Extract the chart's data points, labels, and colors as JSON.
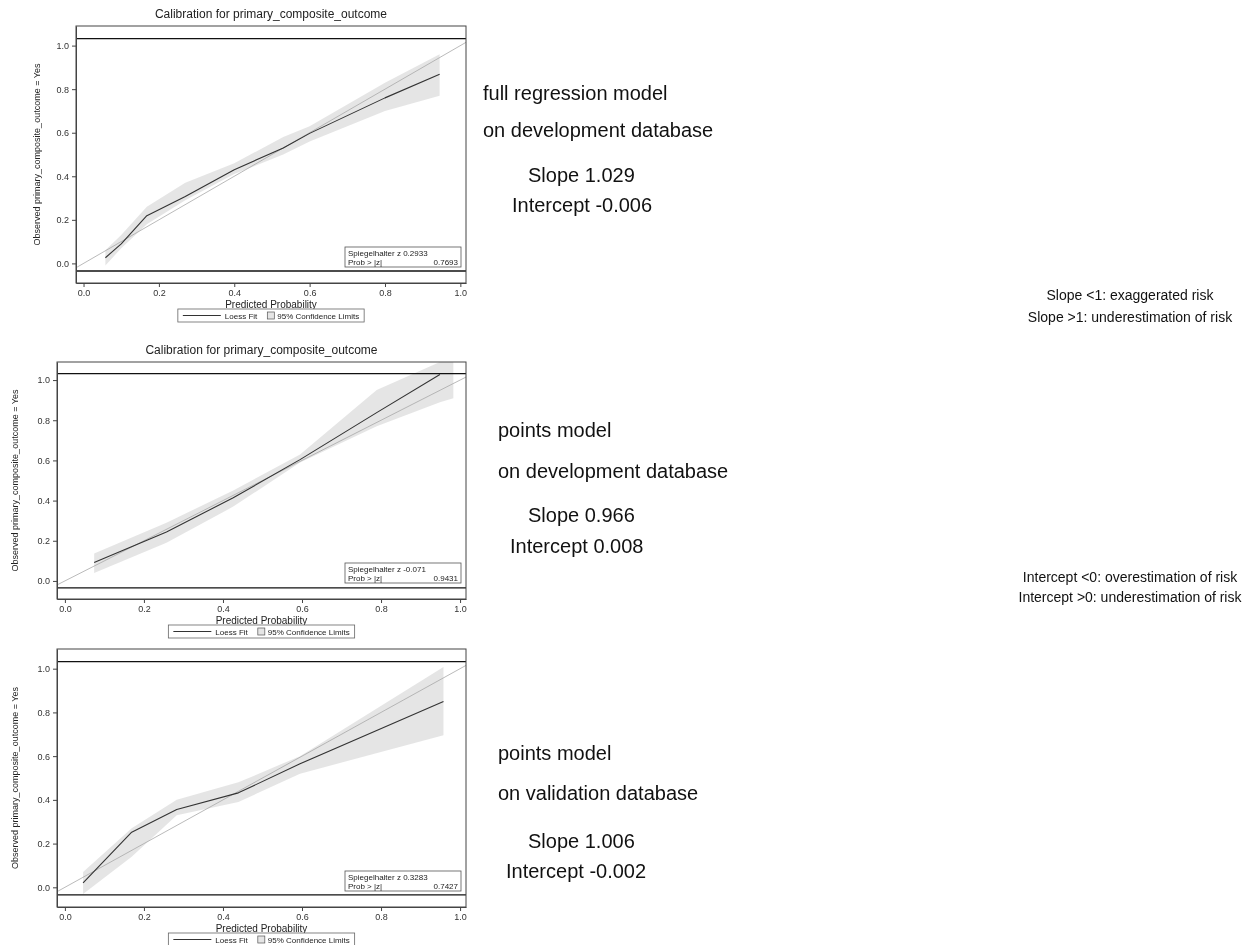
{
  "chart_data": [
    {
      "type": "line",
      "title": "Calibration for primary_composite_outcome",
      "xlabel": "Predicted Probability",
      "ylabel": "Observed primary_composite_outcome = Yes",
      "xlim": [
        -0.02,
        1.015
      ],
      "ylim": [
        -0.09,
        1.09
      ],
      "xticks": [
        {
          "value": 0,
          "label": "0.0"
        },
        {
          "value": 0.2,
          "label": "0.2"
        },
        {
          "value": 0.4,
          "label": "0.4"
        },
        {
          "value": 0.6,
          "label": "0.6"
        },
        {
          "value": 0.8,
          "label": "0.8"
        },
        {
          "value": 1,
          "label": "1.0"
        }
      ],
      "yticks": [
        {
          "value": 0,
          "label": "0.0"
        },
        {
          "value": 0.2,
          "label": "0.2"
        },
        {
          "value": 0.4,
          "label": "0.4"
        },
        {
          "value": 0.6,
          "label": "0.6"
        },
        {
          "value": 0.8,
          "label": "0.8"
        },
        {
          "value": 1,
          "label": "1.0"
        }
      ],
      "series": [
        {
          "color": "#a8a8a8",
          "x": [
            -0.02,
            1.015
          ],
          "values": [
            -0.02,
            1.015
          ]
        },
        {
          "name": "Loess Fit",
          "color": "#333333",
          "x": [
            0.058,
            0.1,
            0.168,
            0.27,
            0.4,
            0.53,
            0.6,
            0.8,
            0.945
          ],
          "values": [
            0.026,
            0.09,
            0.219,
            0.307,
            0.43,
            0.53,
            0.597,
            0.76,
            0.868
          ],
          "upper": [
            0.06,
            0.13,
            0.26,
            0.37,
            0.46,
            0.58,
            0.63,
            0.83,
            0.96
          ],
          "lower": [
            -0.01,
            0.07,
            0.18,
            0.29,
            0.41,
            0.5,
            0.56,
            0.7,
            0.77
          ]
        }
      ],
      "ref_lines": [
        {
          "axis": "y",
          "value": 1.032,
          "color": "#111111"
        },
        {
          "axis": "y",
          "value": -0.035,
          "color": "#111111"
        }
      ],
      "legend": "bottom",
      "annotations": [
        "Spiegelhalter z 0.2933",
        "Prob > |z| 0.7693",
        "95% Confidence Limits",
        "full regression model",
        "on development database",
        "Slope 1.029",
        "Intercept -0.006",
        "Slope <1: exaggerated risk",
        "Slope >1: underestimation of risk"
      ]
    },
    {
      "type": "line",
      "title": "Calibration for primary_composite_outcome",
      "xlabel": "Predicted Probability",
      "ylabel": "Observed primary_composite_outcome = Yes",
      "xlim": [
        -0.02,
        1.015
      ],
      "ylim": [
        -0.09,
        1.09
      ],
      "xticks": [
        {
          "value": 0,
          "label": "0.0"
        },
        {
          "value": 0.2,
          "label": "0.2"
        },
        {
          "value": 0.4,
          "label": "0.4"
        },
        {
          "value": 0.6,
          "label": "0.6"
        },
        {
          "value": 0.8,
          "label": "0.8"
        },
        {
          "value": 1,
          "label": "1.0"
        }
      ],
      "yticks": [
        {
          "value": 0,
          "label": "0.0"
        },
        {
          "value": 0.2,
          "label": "0.2"
        },
        {
          "value": 0.4,
          "label": "0.4"
        },
        {
          "value": 0.6,
          "label": "0.6"
        },
        {
          "value": 0.8,
          "label": "0.8"
        },
        {
          "value": 1,
          "label": "1.0"
        }
      ],
      "series": [
        {
          "color": "#a8a8a8",
          "x": [
            -0.02,
            1.015
          ],
          "values": [
            -0.02,
            1.015
          ]
        },
        {
          "name": "Loess Fit",
          "color": "#333333",
          "x": [
            0.074,
            0.257,
            0.426,
            0.595,
            0.789,
            0.949,
            0.983
          ],
          "values": [
            0.092,
            0.244,
            0.414,
            0.604,
            0.838,
            1.028,
            null
          ],
          "upper": [
            0.137,
            0.29,
            0.45,
            0.63,
            0.95,
            1.09,
            1.09
          ],
          "lower": [
            0.04,
            0.19,
            0.37,
            0.59,
            0.77,
            0.89,
            0.91
          ]
        }
      ],
      "ref_lines": [
        {
          "axis": "y",
          "value": 1.032,
          "color": "#111111"
        },
        {
          "axis": "y",
          "value": -0.035,
          "color": "#111111"
        }
      ],
      "legend": "bottom",
      "annotations": [
        "Spiegelhalter z -0.071",
        "Prob > |z| 0.9431",
        "95% Confidence Limits",
        "points model",
        "on development database",
        "Slope 0.966",
        "Intercept 0.008",
        "Intercept <0: overestimation of risk",
        "Intercept >0: underestimation of risk"
      ]
    },
    {
      "type": "line",
      "xlabel": "Predicted Probability",
      "ylabel": "Observed primary_composite_outcome = Yes",
      "xlim": [
        -0.02,
        1.015
      ],
      "ylim": [
        -0.09,
        1.09
      ],
      "xticks": [
        {
          "value": 0,
          "label": "0.0"
        },
        {
          "value": 0.2,
          "label": "0.2"
        },
        {
          "value": 0.4,
          "label": "0.4"
        },
        {
          "value": 0.6,
          "label": "0.6"
        },
        {
          "value": 0.8,
          "label": "0.8"
        },
        {
          "value": 1,
          "label": "1.0"
        }
      ],
      "yticks": [
        {
          "value": 0,
          "label": "0.0"
        },
        {
          "value": 0.2,
          "label": "0.2"
        },
        {
          "value": 0.4,
          "label": "0.4"
        },
        {
          "value": 0.6,
          "label": "0.6"
        },
        {
          "value": 0.8,
          "label": "0.8"
        },
        {
          "value": 1,
          "label": "1.0"
        }
      ],
      "series": [
        {
          "color": "#a8a8a8",
          "x": [
            -0.02,
            1.015
          ],
          "values": [
            -0.02,
            1.015
          ]
        },
        {
          "name": "Loess Fit",
          "color": "#333333",
          "x": [
            0.046,
            0.169,
            0.283,
            0.439,
            0.595,
            0.958
          ],
          "values": [
            0.02,
            0.252,
            0.356,
            0.432,
            0.565,
            0.85
          ],
          "upper": [
            0.07,
            0.27,
            0.4,
            0.48,
            0.6,
            1.008
          ],
          "lower": [
            -0.03,
            0.14,
            0.33,
            0.39,
            0.52,
            0.695
          ]
        }
      ],
      "ref_lines": [
        {
          "axis": "y",
          "value": 1.032,
          "color": "#111111"
        },
        {
          "axis": "y",
          "value": -0.035,
          "color": "#111111"
        }
      ],
      "legend": "bottom",
      "annotations": [
        "Spiegelhalter z 0.3283",
        "Prob > |z| 0.7427",
        "95% Confidence Limits",
        "points model",
        "on validation database",
        "Slope 1.006",
        "Intercept -0.002"
      ]
    }
  ]
}
